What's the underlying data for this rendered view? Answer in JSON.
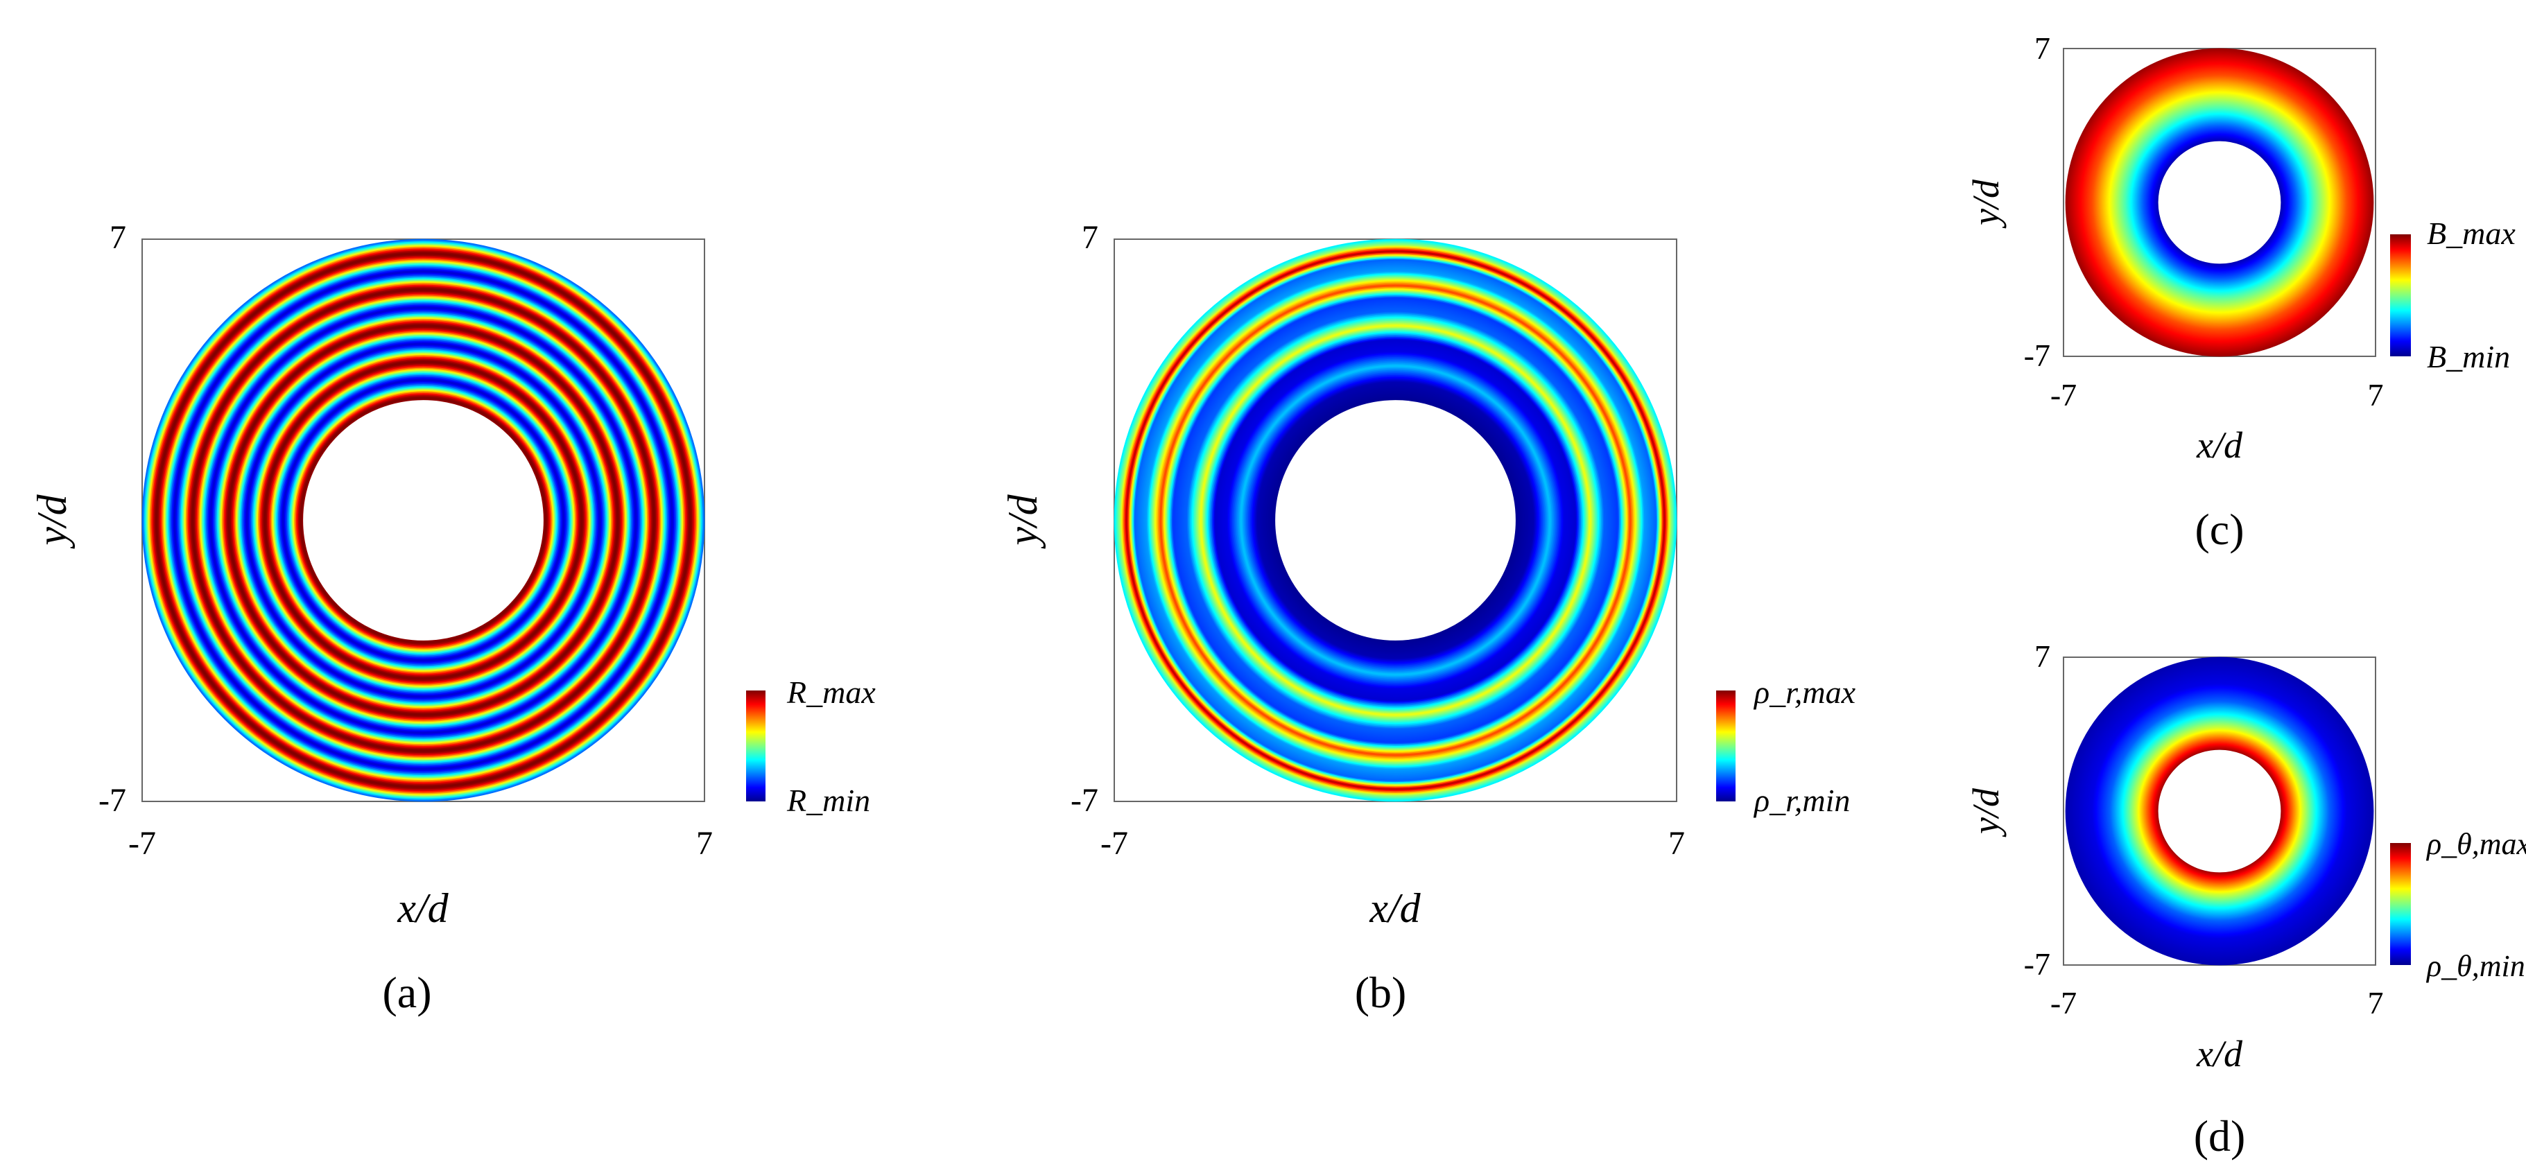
{
  "figure": {
    "panels": [
      {
        "id": "a",
        "caption": "(a)",
        "tick_left": "-7",
        "tick_right": "7",
        "tick_top": "7",
        "tick_bottom": "-7",
        "xlabel": "x/d",
        "ylabel": "y/d",
        "colorbar": {
          "max_label": "R_max",
          "min_label": "R_min"
        }
      },
      {
        "id": "b",
        "caption": "(b)",
        "tick_left": "-7",
        "tick_right": "7",
        "tick_top": "7",
        "tick_bottom": "-7",
        "xlabel": "x/d",
        "ylabel": "y/d",
        "colorbar": {
          "max_label": "ρ_r,max",
          "min_label": "ρ_r,min"
        }
      },
      {
        "id": "c",
        "caption": "(c)",
        "tick_left": "-7",
        "tick_right": "7",
        "tick_top": "7",
        "tick_bottom": "-7",
        "xlabel": "x/d",
        "ylabel": "y/d",
        "colorbar": {
          "max_label": "B_max",
          "min_label": "B_min"
        }
      },
      {
        "id": "d",
        "caption": "(d)",
        "tick_left": "-7",
        "tick_right": "7",
        "tick_top": "7",
        "tick_bottom": "-7",
        "xlabel": "x/d",
        "ylabel": "y/d",
        "colorbar": {
          "max_label": "ρ_θ,max",
          "min_label": "ρ_θ,min"
        }
      }
    ]
  },
  "chart_data": [
    {
      "type": "heatmap",
      "panel": "a",
      "shape": "annulus",
      "xlim": [
        -7,
        7
      ],
      "ylim": [
        -7,
        7
      ],
      "inner_radius": 3,
      "outer_radius": 7,
      "field": "R",
      "pattern": "concentric oscillation",
      "peak_radii": [
        3.05,
        3.95,
        4.85,
        5.75,
        6.65
      ],
      "trough_radii": [
        3.5,
        4.4,
        5.3,
        6.2
      ],
      "colormap": "jet",
      "colorbar_labels": [
        "R_max",
        "R_min"
      ]
    },
    {
      "type": "heatmap",
      "panel": "b",
      "shape": "annulus",
      "xlim": [
        -7,
        7
      ],
      "ylim": [
        -7,
        7
      ],
      "inner_radius": 3,
      "outer_radius": 7,
      "field": "rho_r",
      "pattern": "concentric oscillation, amplitude growing with radius",
      "value_profile": [
        [
          3.0,
          0.02
        ],
        [
          3.45,
          0.05
        ],
        [
          3.85,
          0.32
        ],
        [
          4.2,
          0.1
        ],
        [
          4.5,
          0.08
        ],
        [
          4.85,
          0.62
        ],
        [
          5.2,
          0.22
        ],
        [
          5.55,
          0.18
        ],
        [
          5.85,
          0.82
        ],
        [
          6.2,
          0.28
        ],
        [
          6.5,
          0.22
        ],
        [
          6.7,
          0.97
        ],
        [
          6.85,
          0.55
        ],
        [
          7.0,
          0.35
        ]
      ],
      "colormap": "jet",
      "colorbar_labels": [
        "ρ_r,max",
        "ρ_r,min"
      ]
    },
    {
      "type": "heatmap",
      "panel": "c",
      "shape": "annulus",
      "xlim": [
        -7,
        7
      ],
      "ylim": [
        -7,
        7
      ],
      "inner_radius": 2.8,
      "outer_radius": 7,
      "field": "B",
      "pattern": "radial gradient, increasing outward",
      "value_profile": [
        [
          2.8,
          0.05
        ],
        [
          3.5,
          0.22
        ],
        [
          4.3,
          0.45
        ],
        [
          5.0,
          0.62
        ],
        [
          5.8,
          0.8
        ],
        [
          6.5,
          0.9
        ],
        [
          7.0,
          0.97
        ]
      ],
      "colormap": "jet",
      "colorbar_labels": [
        "B_max",
        "B_min"
      ]
    },
    {
      "type": "heatmap",
      "panel": "d",
      "shape": "annulus",
      "xlim": [
        -7,
        7
      ],
      "ylim": [
        -7,
        7
      ],
      "inner_radius": 2.8,
      "outer_radius": 7,
      "field": "rho_theta",
      "pattern": "radial gradient, decreasing outward",
      "value_profile": [
        [
          2.8,
          0.97
        ],
        [
          3.3,
          0.78
        ],
        [
          3.8,
          0.58
        ],
        [
          4.4,
          0.38
        ],
        [
          5.0,
          0.22
        ],
        [
          5.8,
          0.1
        ],
        [
          7.0,
          0.05
        ]
      ],
      "colormap": "jet",
      "colorbar_labels": [
        "ρ_θ,max",
        "ρ_θ,min"
      ]
    }
  ]
}
